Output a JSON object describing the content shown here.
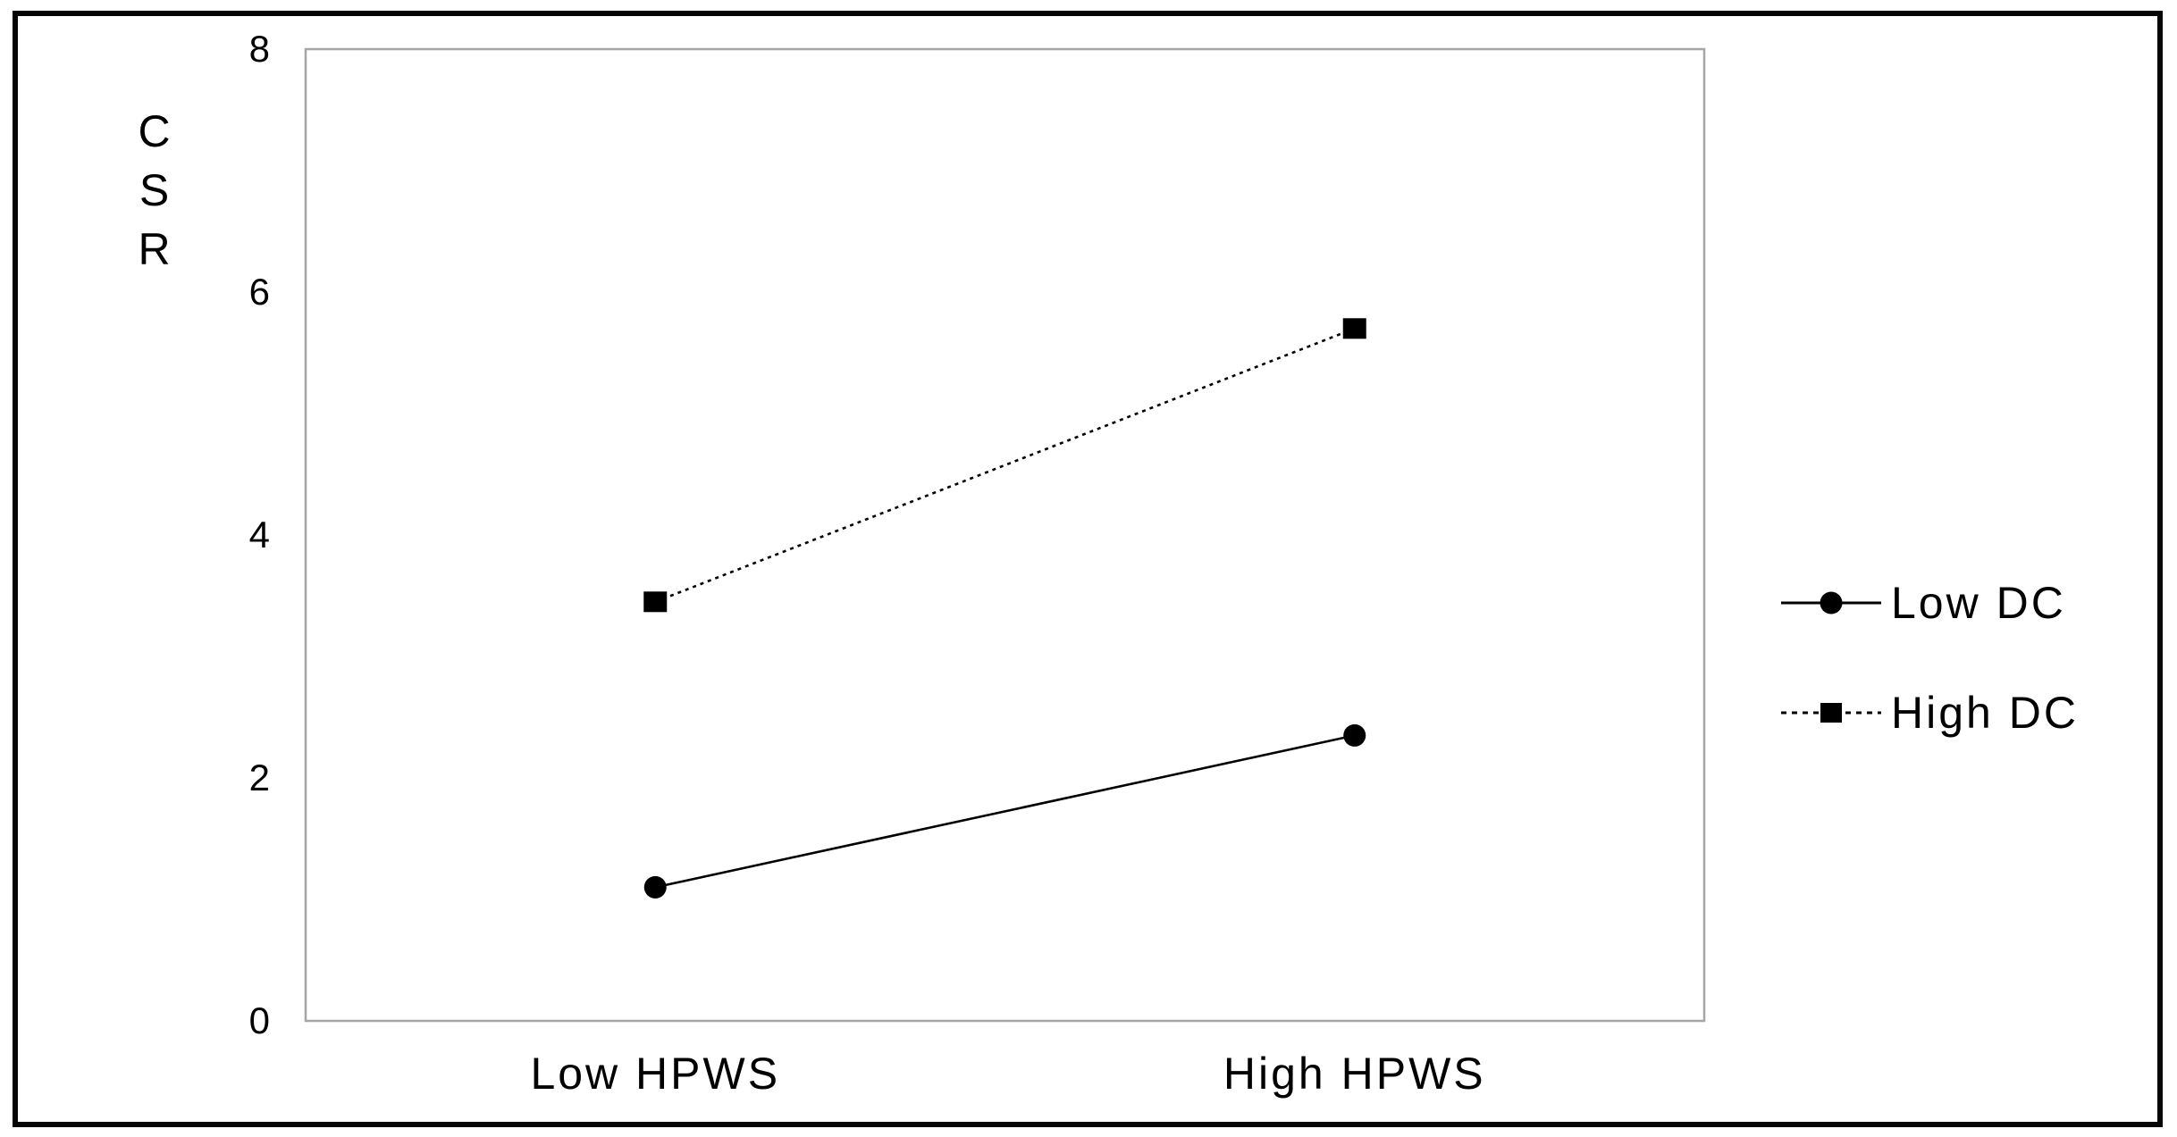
{
  "chart_data": {
    "type": "line",
    "title": "",
    "xlabel": "",
    "ylabel": "CSR",
    "ylabel_display": "C\nS\nR",
    "categories": [
      "Low HPWS",
      "High HPWS"
    ],
    "series": [
      {
        "name": "Low DC",
        "values": [
          1.1,
          2.35
        ],
        "line": "solid",
        "marker": "circle"
      },
      {
        "name": "High DC",
        "values": [
          3.45,
          5.7
        ],
        "line": "dashed",
        "marker": "square"
      }
    ],
    "ylim": [
      0,
      8
    ],
    "yticks": [
      0,
      2,
      4,
      6,
      8
    ],
    "grid": false,
    "legend_position": "right-outside",
    "colors": {
      "series_color": "#000000",
      "plot_border": "#a6a6a6",
      "figure_border": "#050505",
      "background": "#ffffff",
      "text": "#000000"
    }
  }
}
